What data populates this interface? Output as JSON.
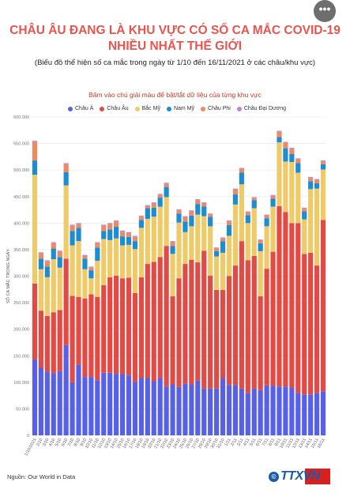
{
  "header": {
    "title_line1": "CHÂU ÂU ĐANG LÀ KHU VỰC CÓ SỐ CA MẮC COVID-19",
    "title_line2": "NHIỀU NHẤT THẾ GIỚI",
    "subtitle": "(Biểu đồ thể hiện số ca mắc trong ngày từ 1/10 đến 16/11/2021 ở các châu/khu vực)",
    "hint": "Bấm vào chú giải màu để bật/tắt dữ liệu của từng khu vực",
    "menu_label": "•••"
  },
  "colors": {
    "asia": "#5861e5",
    "europe": "#e04b45",
    "north_america": "#eecb68",
    "south_america": "#1d8cd1",
    "africa": "#ee8a5f",
    "oceania": "#b788d4"
  },
  "legend": [
    {
      "key": "asia",
      "label": "Châu Á"
    },
    {
      "key": "europe",
      "label": "Châu Âu"
    },
    {
      "key": "north_america",
      "label": "Bắc Mỹ"
    },
    {
      "key": "south_america",
      "label": "Nam Mỹ"
    },
    {
      "key": "africa",
      "label": "Châu Phi"
    },
    {
      "key": "oceania",
      "label": "Châu Đại Dương"
    }
  ],
  "chart_data": {
    "type": "bar",
    "stacked": true,
    "ylabel": "SỐ CA MẮC TRONG NGÀY",
    "ylim": [
      0,
      600000
    ],
    "yticks": [
      0,
      50000,
      100000,
      150000,
      200000,
      250000,
      300000,
      350000,
      400000,
      450000,
      500000,
      550000,
      600000
    ],
    "ytick_labels": [
      "0",
      "50.000",
      "100.000",
      "150.000",
      "200.000",
      "250.000",
      "300.000",
      "350.000",
      "400.000",
      "450.000",
      "500.000",
      "550.000",
      "600.000"
    ],
    "grid": true,
    "categories": [
      "1/10/2021",
      "2/10",
      "3/10",
      "4/10",
      "5/10",
      "6/10",
      "7/10",
      "8/10",
      "9/10",
      "10/10",
      "11/10",
      "12/10",
      "13/10",
      "14/10",
      "15/10",
      "16/10",
      "17/10",
      "18/10",
      "19/10",
      "20/10",
      "21/10",
      "22/10",
      "23/10",
      "24/10",
      "25/10",
      "26/10",
      "27/10",
      "28/10",
      "29/10",
      "30/10",
      "31/10",
      "1/11",
      "2/11",
      "3/11",
      "4/11",
      "5/11",
      "6/11",
      "7/11",
      "8/11",
      "9/11",
      "10/11",
      "11/11",
      "12/11",
      "13/11",
      "14/11",
      "15/11",
      "16/11"
    ],
    "x_tick_labels": [
      "1/10/2021",
      "2/10",
      "3/10",
      "4/10",
      "5/10",
      "6/10",
      "7/10",
      "8/10",
      "9/10",
      "10/10",
      "11/10",
      "12/10",
      "13/10",
      "14/10",
      "15/10",
      "16/10",
      "17/10",
      "18/10",
      "19/10",
      "20/10",
      "21/10",
      "22/10",
      "23/10",
      "24/10",
      "25/10",
      "26/10",
      "27/10",
      "28/10",
      "29/10",
      "30/10",
      "31/10",
      "1/11",
      "2/11",
      "3/11",
      "4/11",
      "5/11",
      "6/11",
      "7/11",
      "8/11",
      "9/11",
      "10/11",
      "11/11",
      "12/11",
      "13/11",
      "14/11",
      "15/11",
      "16/11"
    ],
    "series": [
      {
        "key": "asia",
        "name": "Châu Á",
        "values": [
          143000,
          128000,
          120000,
          117000,
          121000,
          170000,
          100000,
          133000,
          110000,
          110000,
          104000,
          118000,
          118000,
          116000,
          116000,
          113000,
          101000,
          108000,
          108000,
          102000,
          108000,
          92000,
          96000,
          91000,
          98000,
          96000,
          103000,
          88000,
          88000,
          88000,
          108000,
          95000,
          95000,
          88000,
          80000,
          88000,
          85000,
          94000,
          93000,
          92000,
          92000,
          90000,
          80000,
          77000,
          77000,
          80000,
          83000
        ]
      },
      {
        "key": "europe",
        "name": "Châu Âu",
        "values": [
          143000,
          107000,
          105000,
          115000,
          115000,
          163000,
          163000,
          128000,
          148000,
          156000,
          157000,
          165000,
          180000,
          185000,
          180000,
          184000,
          167000,
          190000,
          215000,
          225000,
          228000,
          265000,
          166000,
          205000,
          225000,
          235000,
          223000,
          260000,
          213000,
          186000,
          166000,
          205000,
          225000,
          278000,
          250000,
          250000,
          177000,
          220000,
          253000,
          340000,
          329000,
          310000,
          320000,
          265000,
          267000,
          240000,
          323000
        ]
      },
      {
        "key": "north_america",
        "name": "Bắc Mỹ",
        "values": [
          205000,
          78000,
          73000,
          100000,
          80000,
          138000,
          95000,
          105000,
          55000,
          30000,
          68000,
          87000,
          70000,
          70000,
          62000,
          62000,
          83000,
          93000,
          85000,
          85000,
          95000,
          92000,
          80000,
          105000,
          60000,
          63000,
          90000,
          65000,
          93000,
          63000,
          70000,
          76000,
          115000,
          107000,
          70000,
          90000,
          85000,
          80000,
          85000,
          120000,
          95000,
          115000,
          95000,
          65000,
          120000,
          145000,
          95000
        ]
      },
      {
        "key": "south_america",
        "name": "Nam Mỹ",
        "values": [
          27000,
          20000,
          20000,
          20000,
          20000,
          25000,
          27000,
          25000,
          20000,
          15000,
          25000,
          15000,
          20000,
          22000,
          17000,
          15000,
          15000,
          15000,
          20000,
          17000,
          17000,
          19000,
          15000,
          17000,
          20000,
          20000,
          20000,
          18000,
          18000,
          10000,
          22000,
          20000,
          19000,
          22000,
          15000,
          15000,
          15000,
          15000,
          15000,
          10000,
          25000,
          15000,
          18000,
          15000,
          15000,
          10000,
          10000
        ]
      },
      {
        "key": "africa",
        "name": "Châu Phi",
        "values": [
          35000,
          10000,
          10000,
          10000,
          10000,
          15000,
          10000,
          7000,
          5000,
          5000,
          8000,
          10000,
          10000,
          10000,
          9000,
          7000,
          8000,
          6000,
          4000,
          8000,
          5000,
          6000,
          7000,
          6000,
          8000,
          8000,
          7000,
          6000,
          4000,
          5000,
          5000,
          7000,
          9000,
          7000,
          5000,
          4000,
          5000,
          5000,
          5000,
          10000,
          10000,
          10000,
          7000,
          5000,
          6000,
          6000,
          5000
        ]
      },
      {
        "key": "oceania",
        "name": "Châu Đại Dương",
        "values": [
          2000,
          2000,
          2000,
          2000,
          2000,
          2000,
          2000,
          2000,
          2000,
          2000,
          2000,
          2000,
          2000,
          2000,
          2000,
          2000,
          2000,
          2000,
          2000,
          2000,
          2000,
          2000,
          2000,
          2000,
          2000,
          2000,
          2000,
          2000,
          2000,
          2000,
          2000,
          2000,
          2000,
          2000,
          2000,
          2000,
          2000,
          2000,
          2000,
          2000,
          2000,
          2000,
          2000,
          2000,
          2000,
          2000,
          2000
        ]
      }
    ]
  },
  "footer": {
    "source": "Nguồn: Our World in Data",
    "logo_mark": "©",
    "logo_text": "TTXVN"
  }
}
